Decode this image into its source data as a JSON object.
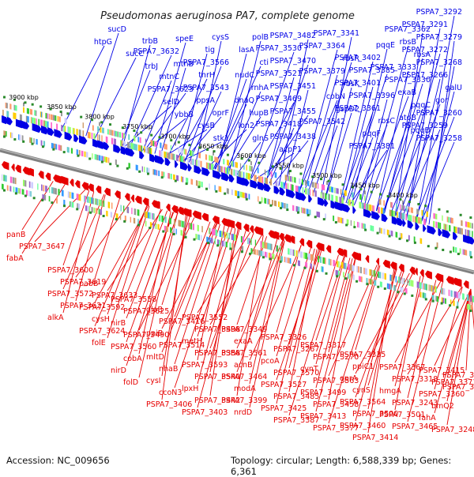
{
  "title": "Pseudomonas aeruginosa PA7, complete genome",
  "footer": {
    "accession": "Accession: NC_009656",
    "summary": "Topology: circular; Length: 6,588,339 bp; Genes: 6,361"
  },
  "colors": {
    "forward": "#0000e6",
    "reverse": "#e60000",
    "backbone": "#808080",
    "gc_dots": "#2a8a2a"
  },
  "ticks": [
    "3400 kbp",
    "3450 kbp",
    "3500 kbp",
    "3550 kbp",
    "3600 kbp",
    "3650 kbp",
    "3700 kbp",
    "3750 kbp",
    "3800 kbp",
    "3850 kbp",
    "3900 kbp"
  ],
  "forward_genes": [
    "PSPA7_3292",
    "PSPA7_3291",
    "PSPA7_3279",
    "PSPA7_3272",
    "PSPA7_3268",
    "PSPA7_3266",
    "galU",
    "gor",
    "PSPA7_3260",
    "PSPA7_3259",
    "PSPA7_3258",
    "PSPA7_3362",
    "rbsB",
    "rbsA",
    "PSPA7_3333",
    "PSPA7_3330",
    "exaB",
    "pqqC",
    "atoB",
    "pqqD",
    "pqqE",
    "PSPA7_3402",
    "PSPA7_3385",
    "PSPA7_3401",
    "PSPA7_3396",
    "PSPA7_3361",
    "rbsC",
    "pqqF",
    "PSPA7_3381",
    "PSPA7_3341",
    "PSPA7_3364",
    "rbsR",
    "PSPA7_3379",
    "rbsK",
    "cobN",
    "gspD2",
    "PSPA7_3542",
    "PSPA7_3482",
    "PSPA7_3530",
    "PSPA7_3470",
    "PSPA7_3521",
    "PSPA7_3451",
    "PSPA7_3469",
    "PSPA7_3455",
    "PSPA7_3418",
    "PSPA7_3438",
    "acpP1",
    "polB",
    "lasA",
    "cti",
    "nudC",
    "rnhA",
    "dnaQ",
    "hupB",
    "lon2",
    "glnS",
    "cysS",
    "tig",
    "PSPA7_3566",
    "thrH",
    "PSPA7_3543",
    "ppsA",
    "oprF",
    "cysB",
    "stk1",
    "speE",
    "PSPA7_3632",
    "mtnB",
    "mtnC",
    "PSPA7_3623",
    "selD",
    "ybbB",
    "trbB",
    "sucC",
    "trbJ",
    "sucD",
    "htpG"
  ],
  "reverse_genes": [
    "panB",
    "PSPA7_3647",
    "fabA",
    "PSPA7_3600",
    "PSPA7_3619",
    "PSPA7_3572",
    "PSPA7_3621",
    "alkA",
    "pabB",
    "PSPA7_3633",
    "PSPA7_3592",
    "cysH",
    "PSPA7_3624",
    "folE",
    "PSPA7_3558",
    "PSPA7_3625",
    "nirB",
    "PSPA7_3490",
    "PSPA7_3560",
    "cobA",
    "nirD",
    "folD",
    "gloB",
    "PSPA7_3416",
    "ppiB",
    "PSPA7_3514",
    "mltD",
    "nhaB",
    "cysI",
    "ccoN3",
    "PSPA7_3406",
    "PSPA7_3552",
    "PSPA7_3498",
    "metH",
    "PSPA7_3358",
    "PSPA7_3593",
    "PSPA7_3540",
    "lpxH",
    "PSPA7_3442",
    "PSPA7_3403",
    "PSPA7_3349",
    "exaA",
    "PSPA7_3561",
    "acnB",
    "PSPA7_3464",
    "modA",
    "PSPA7_3399",
    "nrdD",
    "PSPA7_3326",
    "PSPA7_3267",
    "pcoA",
    "PSPA7_3570",
    "PSPA7_3527",
    "PSPA7_3485",
    "PSPA7_3425",
    "PSPA7_3387",
    "PSPA7_3317",
    "PSPA7_3270",
    "cynT",
    "PSPA7_3563",
    "PSPA7_3499",
    "PSPA7_3458",
    "PSPA7_3413",
    "PSPA7_3377",
    "PSPA7_3335",
    "ppiC1",
    "oprA",
    "cynS",
    "PSPA7_3564",
    "PSPA7_3500",
    "PSPA7_3460",
    "PSPA7_3414",
    "PSPA7_3367",
    "PSPA7_3318",
    "hmgA",
    "PSPA7_3243",
    "PSPA7_3501",
    "PSPA7_3465",
    "PSPA7_3415",
    "PSPA7_3371",
    "PSPA7_3360",
    "bmQ2",
    "fahA",
    "PSPA7_3248",
    "PSPA7_3473",
    "PSPA7_3329"
  ]
}
